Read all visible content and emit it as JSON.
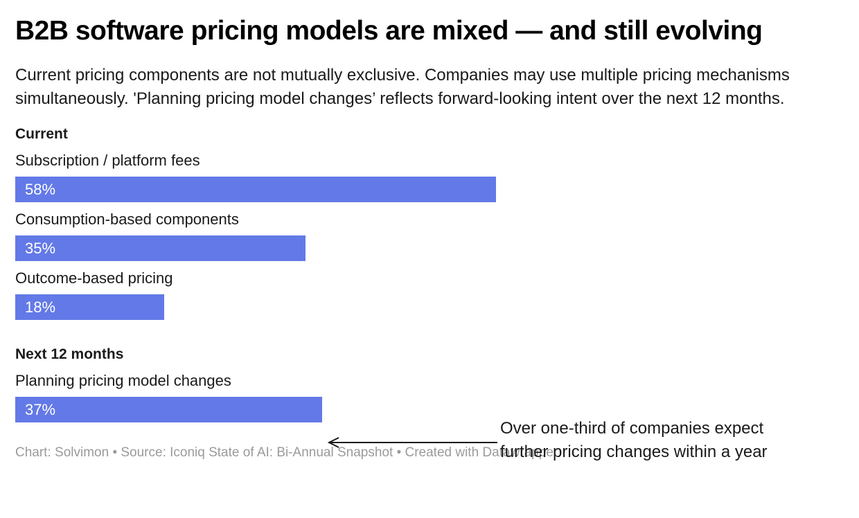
{
  "chart_data": {
    "type": "bar",
    "title": "B2B software pricing models are mixed — and still evolving",
    "subtitle": "Current pricing components are not mutually exclusive. Companies may use multiple pricing mechanisms simultaneously. 'Planning pricing model changes’ reflects forward-looking intent over the next 12 months.",
    "xlim": [
      0,
      100
    ],
    "bar_color": "#6379e7",
    "value_label_color": "#ffffff",
    "groups": [
      {
        "label": "Current",
        "rows": [
          {
            "label": "Subscription / platform fees",
            "value": 58,
            "value_label": "58%"
          },
          {
            "label": "Consumption-based components",
            "value": 35,
            "value_label": "35%"
          },
          {
            "label": "Outcome-based pricing",
            "value": 18,
            "value_label": "18%"
          }
        ]
      },
      {
        "label": "Next 12 months",
        "rows": [
          {
            "label": "Planning pricing model changes",
            "value": 37,
            "value_label": "37%"
          }
        ]
      }
    ],
    "annotation": {
      "line1": "Over one-third of companies expect",
      "line2": "further pricing changes within a year"
    },
    "footer": "Chart: Solvimon • Source: Iconiq State of AI: Bi-Annual Snapshot • Created with Datawrapper"
  }
}
